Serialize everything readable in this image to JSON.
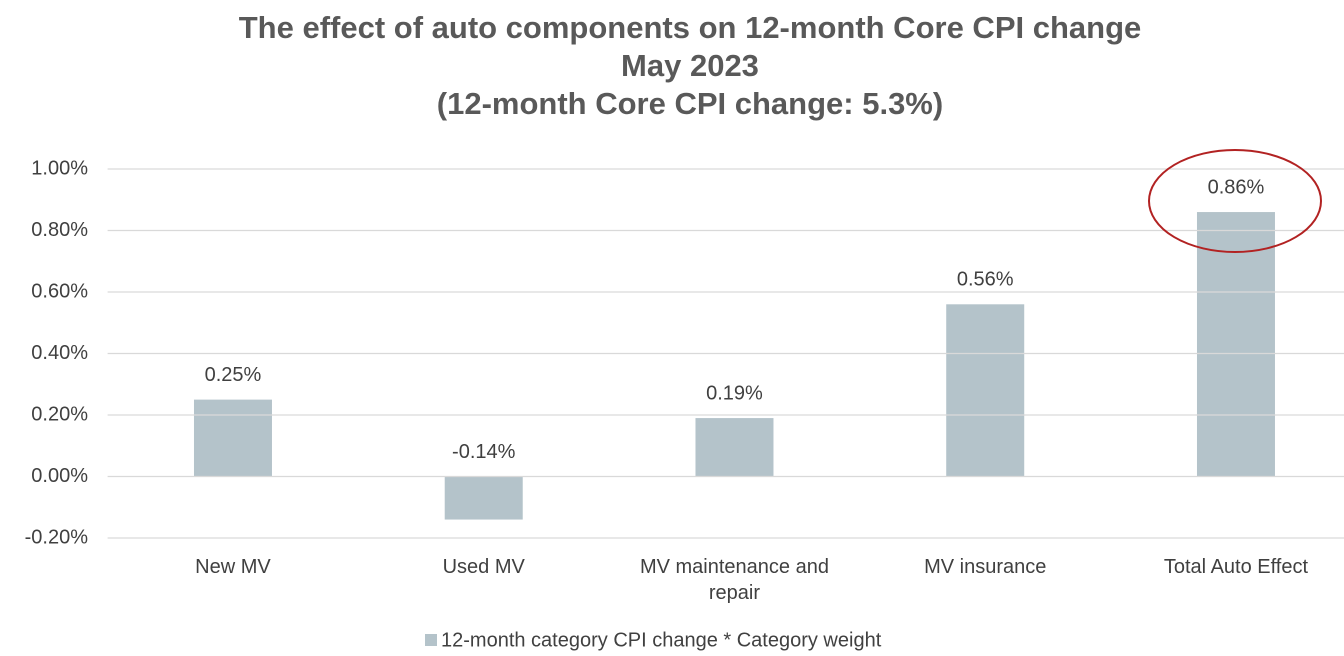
{
  "chart_data": {
    "type": "bar",
    "title": [
      "The effect of auto components on 12-month Core CPI change",
      "May 2023",
      "(12-month Core CPI change: 5.3%)"
    ],
    "categories": [
      "New MV",
      "Used MV",
      "MV maintenance and repair",
      "MV insurance",
      "Total Auto Effect"
    ],
    "series": [
      {
        "name": "12-month category CPI change * Category weight",
        "color": "#b4c3ca",
        "values": [
          0.25,
          -0.14,
          0.19,
          0.56,
          0.86
        ],
        "value_labels": [
          "0.25%",
          "-0.14%",
          "0.19%",
          "0.56%",
          "0.86%"
        ]
      }
    ],
    "ylim": [
      -0.2,
      1.0
    ],
    "yticks": [
      {
        "value": -0.2,
        "label": "-0.20%"
      },
      {
        "value": 0.0,
        "label": "0.00%"
      },
      {
        "value": 0.2,
        "label": "0.20%"
      },
      {
        "value": 0.4,
        "label": "0.40%"
      },
      {
        "value": 0.6,
        "label": "0.60%"
      },
      {
        "value": 0.8,
        "label": "0.80%"
      },
      {
        "value": 1.0,
        "label": "1.00%"
      }
    ],
    "grid": true,
    "legend": "bottom"
  }
}
